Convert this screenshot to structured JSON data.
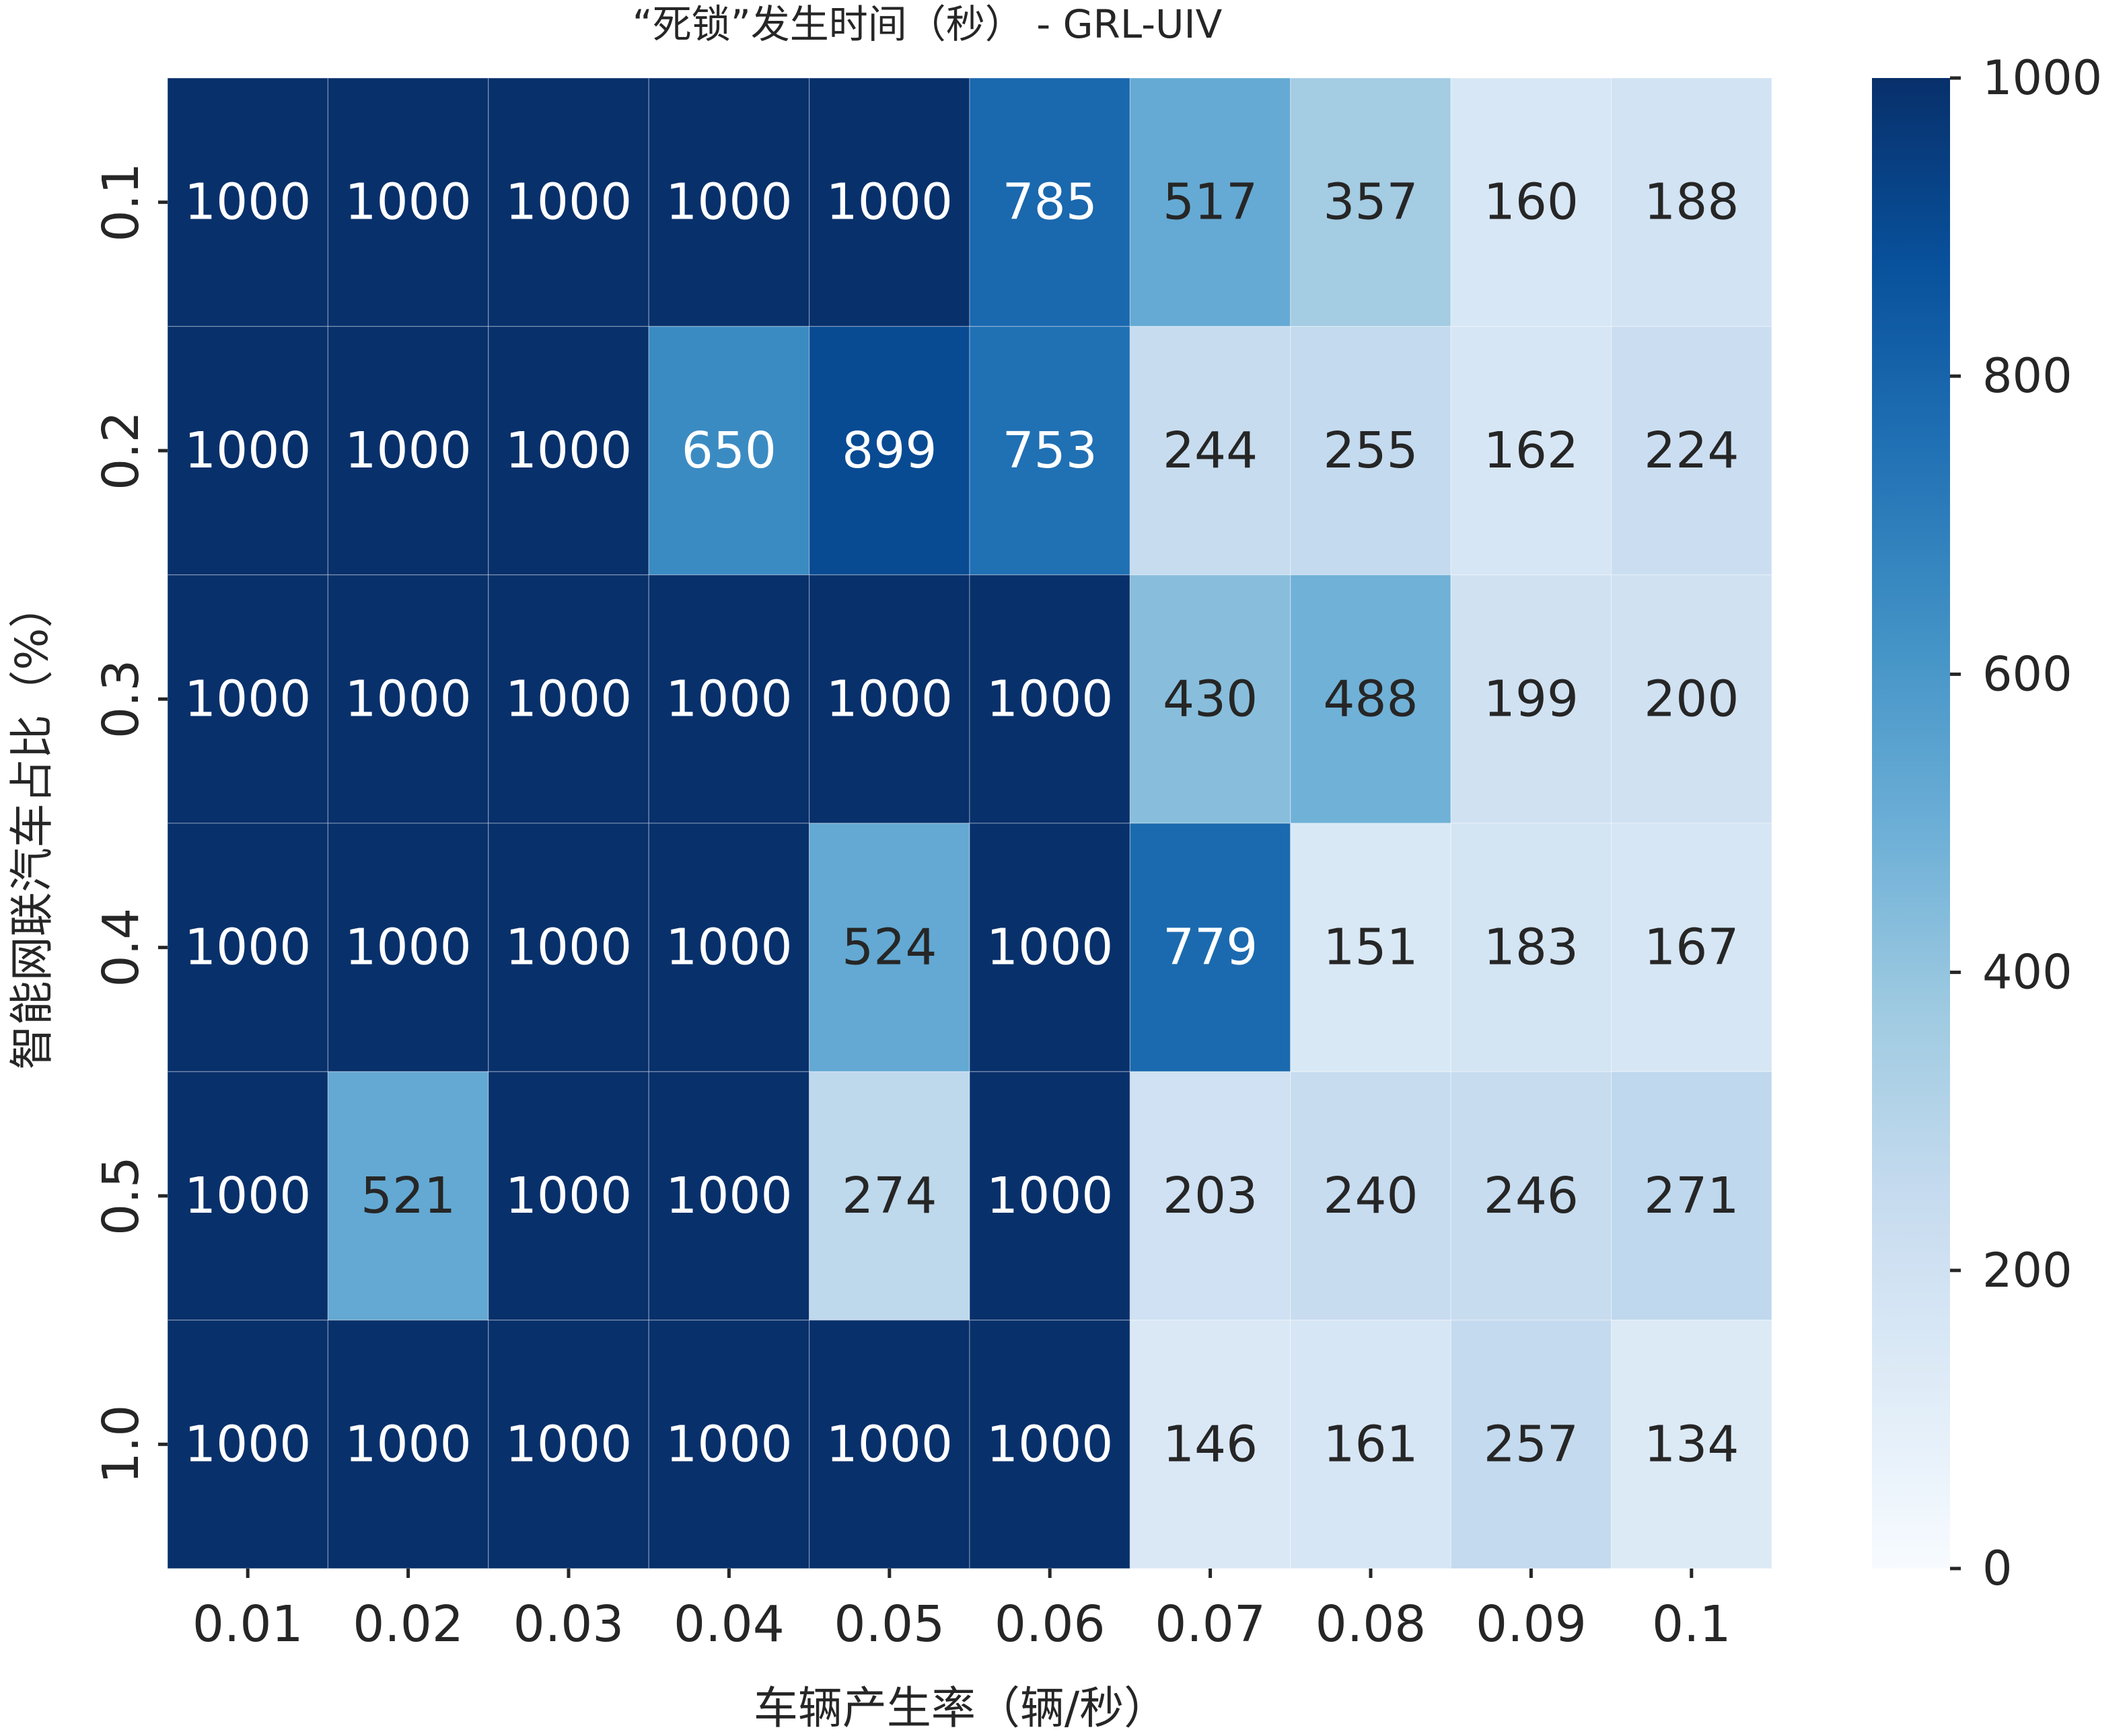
{
  "chart_data": {
    "type": "heatmap",
    "title": "“死锁”发生时间（秒） - GRL-UIV",
    "xlabel": "车辆产生率（辆/秒）",
    "ylabel": "智能网联汽车占比（%）",
    "x_categories": [
      "0.01",
      "0.02",
      "0.03",
      "0.04",
      "0.05",
      "0.06",
      "0.07",
      "0.08",
      "0.09",
      "0.1"
    ],
    "y_categories": [
      "0.1",
      "0.2",
      "0.3",
      "0.4",
      "0.5",
      "1.0"
    ],
    "values": [
      [
        1000,
        1000,
        1000,
        1000,
        1000,
        785,
        517,
        357,
        160,
        188
      ],
      [
        1000,
        1000,
        1000,
        650,
        899,
        753,
        244,
        255,
        162,
        224
      ],
      [
        1000,
        1000,
        1000,
        1000,
        1000,
        1000,
        430,
        488,
        199,
        200
      ],
      [
        1000,
        1000,
        1000,
        1000,
        524,
        1000,
        779,
        151,
        183,
        167
      ],
      [
        1000,
        521,
        1000,
        1000,
        274,
        1000,
        203,
        240,
        246,
        271
      ],
      [
        1000,
        1000,
        1000,
        1000,
        1000,
        1000,
        146,
        161,
        257,
        134
      ]
    ],
    "colorbar": {
      "range": [
        0,
        1000
      ],
      "ticks": [
        "0",
        "200",
        "400",
        "600",
        "800",
        "1000"
      ],
      "colormap": "Blues"
    },
    "annotations": true
  }
}
